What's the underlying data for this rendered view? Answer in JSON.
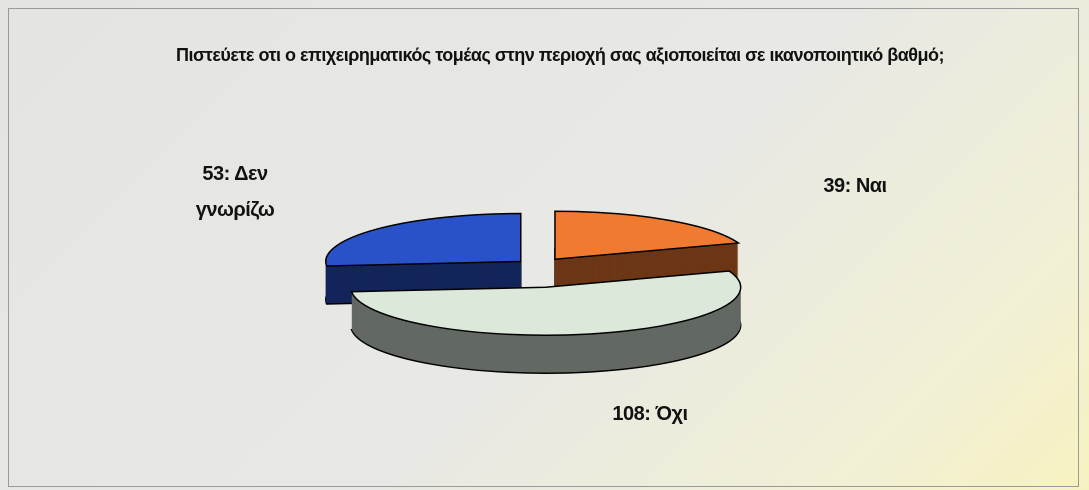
{
  "chart_data": {
    "type": "pie3d",
    "title": "Πιστεύετε οτι ο επιχειρηματικός τομέας στην περιοχή σας αξιοποιείται σε ικανοποιητικό βαθμό;",
    "values": [
      39,
      108,
      53
    ],
    "value_labels": [
      "39: Ναι",
      "108: Όχι",
      "53: Δεν γνωρίζω"
    ],
    "colors": [
      "#f07a30",
      "#dce8da",
      "#2a52c8"
    ]
  }
}
